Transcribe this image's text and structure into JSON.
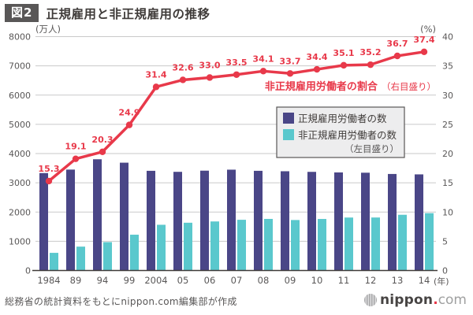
{
  "header": {
    "tag": "図2",
    "title": "正規雇用と非正規雇用の推移"
  },
  "chart_data": {
    "type": "combo-bar-line",
    "title": "正規雇用と非正規雇用の推移",
    "categories": [
      "1984",
      "89",
      "94",
      "99",
      "2004",
      "05",
      "06",
      "07",
      "08",
      "09",
      "10",
      "11",
      "12",
      "13",
      "14"
    ],
    "x_axis_suffix": "(年)",
    "left_axis": {
      "label": "(万人)",
      "min": 0,
      "max": 8000,
      "step": 1000
    },
    "right_axis": {
      "label": "(%)",
      "min": 0,
      "max": 40,
      "step": 5
    },
    "grid": true,
    "legend_position": "right-middle",
    "series": [
      {
        "name": "正規雇用労働者の数",
        "type": "bar",
        "axis": "left",
        "color": "#4a4687",
        "values": [
          3333,
          3452,
          3805,
          3688,
          3410,
          3375,
          3415,
          3449,
          3410,
          3395,
          3374,
          3355,
          3345,
          3302,
          3288
        ]
      },
      {
        "name": "非正規雇用労働者の数",
        "type": "bar",
        "axis": "left",
        "color": "#5ac8cd",
        "values": [
          604,
          817,
          971,
          1225,
          1564,
          1634,
          1678,
          1735,
          1765,
          1727,
          1763,
          1812,
          1813,
          1906,
          1962
        ]
      },
      {
        "name": "非正規雇用労働者の割合",
        "type": "line",
        "axis": "right",
        "color": "#e8394a",
        "values": [
          15.3,
          19.1,
          20.3,
          24.9,
          31.4,
          32.6,
          33.0,
          33.5,
          34.1,
          33.7,
          34.4,
          35.1,
          35.2,
          36.7,
          37.4
        ],
        "labels": [
          "15.3",
          "19.1",
          "20.3",
          "24.9",
          "31.4",
          "32.6",
          "33.0",
          "33.5",
          "34.1",
          "33.7",
          "34.4",
          "35.1",
          "35.2",
          "36.7",
          "37.4"
        ]
      }
    ],
    "colors": {
      "grid": "#c9c9ca",
      "axis_line": "#3f3b39",
      "tick_text": "#595757",
      "legend_bg": "#ededee",
      "legend_border": "#595757"
    }
  },
  "legend": {
    "items": [
      {
        "label": "正規雇用労働者の数",
        "color": "#4a4687"
      },
      {
        "label": "非正規雇用労働者の数",
        "color": "#5ac8cd"
      }
    ],
    "note": "（左目盛り）"
  },
  "line_label": {
    "main": "非正規雇用労働者の割合",
    "note": "（右目盛り）"
  },
  "footer": {
    "source": "総務省の統計資料をもとにnippon.com編集部が作成"
  },
  "logo": {
    "brand": "nippon",
    "dot": ".",
    "tld": "com"
  }
}
